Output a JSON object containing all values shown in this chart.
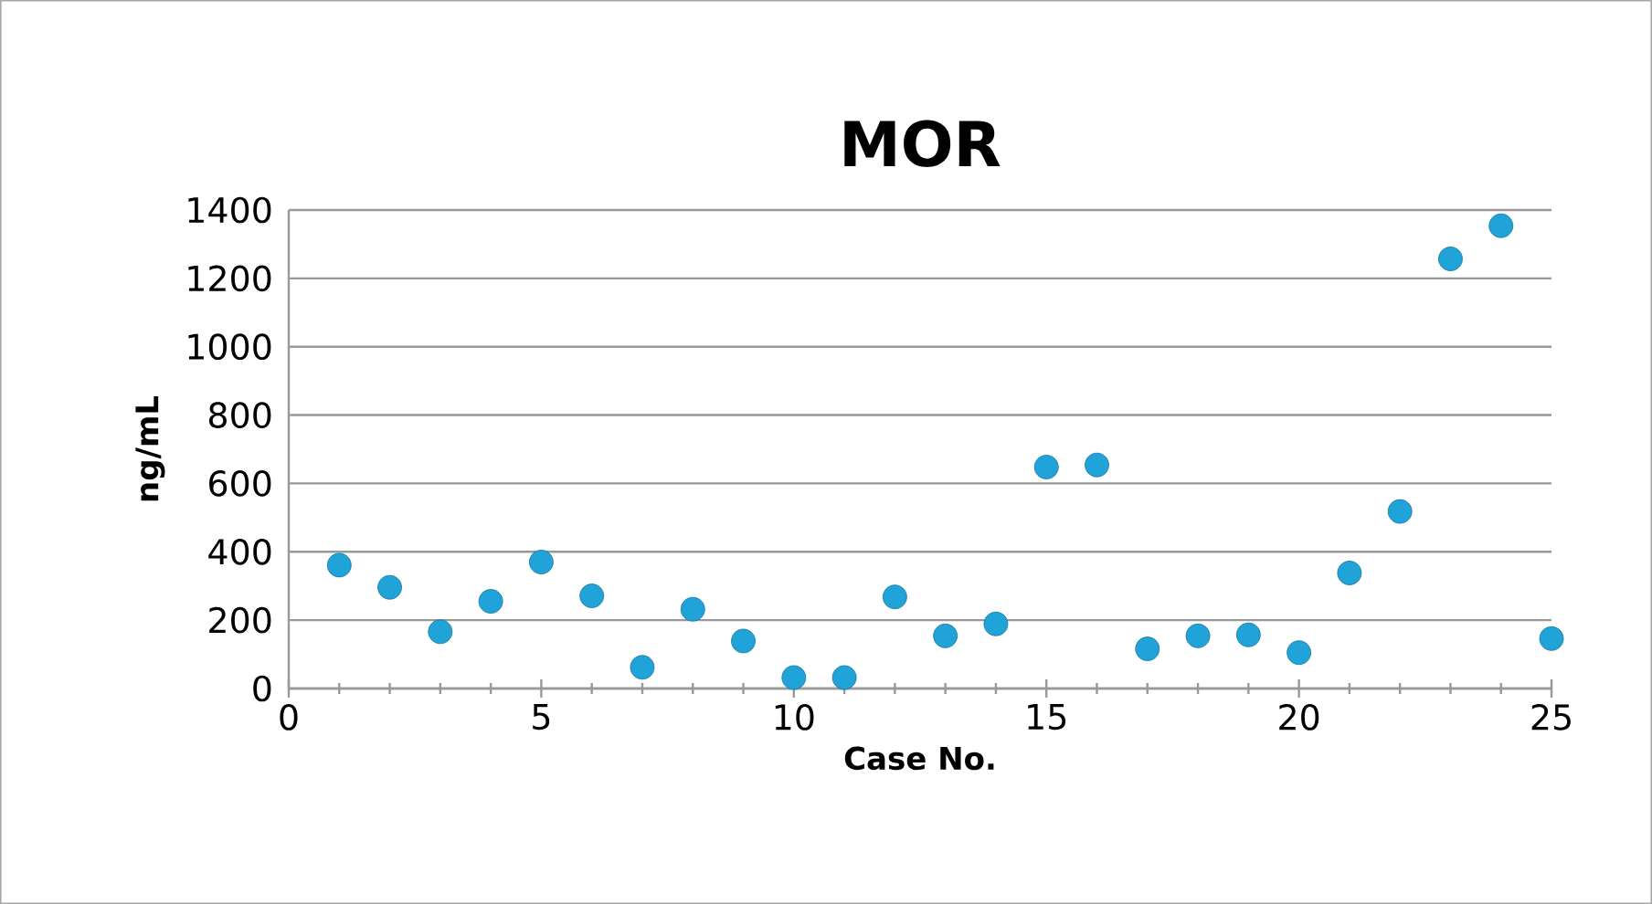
{
  "chart_data": {
    "type": "scatter",
    "title": "MOR",
    "xlabel": "Case No.",
    "ylabel": "ng/mL",
    "x": [
      1,
      2,
      3,
      4,
      5,
      6,
      7,
      8,
      9,
      10,
      11,
      12,
      13,
      14,
      15,
      16,
      17,
      18,
      19,
      20,
      21,
      22,
      23,
      24,
      25
    ],
    "values": [
      361,
      296,
      166,
      255,
      370,
      271,
      62,
      232,
      139,
      32,
      32,
      268,
      154,
      189,
      648,
      654,
      116,
      154,
      157,
      105,
      338,
      518,
      1257,
      1354,
      146
    ],
    "color": "#1fa3d8",
    "marker": "circle",
    "grid": "y",
    "xlim": [
      0,
      25
    ],
    "xticks": [
      0,
      5,
      10,
      15,
      20,
      25
    ],
    "ylim": [
      0,
      1400
    ],
    "yticks": [
      0,
      200,
      400,
      600,
      800,
      1000,
      1200,
      1400
    ]
  }
}
